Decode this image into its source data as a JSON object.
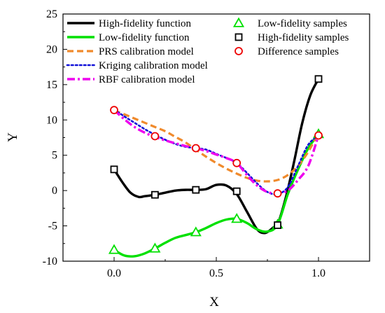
{
  "chart_data": {
    "type": "line",
    "xlabel": "X",
    "ylabel": "Y",
    "xlim": [
      -0.25,
      1.25
    ],
    "ylim": [
      -10,
      25
    ],
    "x_ticks": [
      0.0,
      0.5,
      1.0
    ],
    "x_tick_labels": [
      "0.0",
      "0.5",
      "1.0"
    ],
    "y_ticks": [
      -10,
      -5,
      0,
      5,
      10,
      15,
      20,
      25
    ],
    "y_tick_labels": [
      "-10",
      "-5",
      "0",
      "5",
      "10",
      "15",
      "20",
      "25"
    ],
    "grid": false,
    "legend_position": "top",
    "series": [
      {
        "name": "High-fidelity function",
        "kind": "line",
        "color": "#000000",
        "dash": "solid",
        "x": [
          0.0,
          0.04,
          0.08,
          0.12,
          0.15,
          0.2,
          0.25,
          0.3,
          0.35,
          0.4,
          0.45,
          0.5,
          0.55,
          0.6,
          0.65,
          0.7,
          0.74,
          0.78,
          0.8,
          0.84,
          0.88,
          0.92,
          0.96,
          1.0
        ],
        "y": [
          3.0,
          1.2,
          -0.3,
          -0.9,
          -0.8,
          -0.6,
          -0.3,
          0.0,
          0.1,
          0.1,
          0.2,
          0.8,
          0.7,
          -0.5,
          -3.0,
          -5.5,
          -6.0,
          -5.2,
          -4.8,
          -1.0,
          4.0,
          9.5,
          13.5,
          15.8
        ]
      },
      {
        "name": "Low-fidelity function",
        "kind": "line",
        "color": "#00e000",
        "dash": "solid",
        "x": [
          0.0,
          0.05,
          0.1,
          0.15,
          0.2,
          0.25,
          0.3,
          0.35,
          0.4,
          0.45,
          0.5,
          0.55,
          0.6,
          0.65,
          0.7,
          0.75,
          0.8,
          0.85,
          0.9,
          0.95,
          1.0
        ],
        "y": [
          -8.4,
          -9.2,
          -9.3,
          -8.9,
          -8.2,
          -7.4,
          -6.7,
          -6.3,
          -5.9,
          -5.3,
          -4.6,
          -4.1,
          -4.0,
          -4.6,
          -5.5,
          -5.8,
          -4.8,
          -0.5,
          3.0,
          6.0,
          8.0
        ]
      },
      {
        "name": "PRS calibration model",
        "kind": "line",
        "color": "#f08a2c",
        "dash": "dash",
        "x": [
          0.0,
          0.05,
          0.1,
          0.15,
          0.2,
          0.25,
          0.3,
          0.35,
          0.4,
          0.45,
          0.5,
          0.55,
          0.6,
          0.65,
          0.7,
          0.75,
          0.8,
          0.85,
          0.9,
          0.95,
          1.0
        ],
        "y": [
          11.3,
          10.8,
          10.2,
          9.6,
          9.0,
          8.4,
          7.6,
          6.8,
          5.8,
          4.8,
          3.9,
          3.1,
          2.4,
          1.8,
          1.4,
          1.3,
          1.5,
          2.2,
          3.5,
          5.5,
          8.2
        ]
      },
      {
        "name": "Kriging calibration model",
        "kind": "line",
        "color": "#1010d8",
        "dash": "dot",
        "x": [
          0.0,
          0.05,
          0.1,
          0.15,
          0.2,
          0.25,
          0.3,
          0.35,
          0.4,
          0.45,
          0.5,
          0.55,
          0.6,
          0.65,
          0.7,
          0.75,
          0.8,
          0.85,
          0.9,
          0.95,
          1.0
        ],
        "y": [
          11.5,
          10.5,
          9.6,
          8.7,
          7.9,
          7.2,
          6.6,
          6.2,
          6.0,
          5.8,
          5.2,
          4.6,
          3.9,
          2.5,
          1.0,
          -0.2,
          -0.5,
          0.5,
          3.5,
          6.5,
          7.8
        ]
      },
      {
        "name": "RBF calibration model",
        "kind": "line",
        "color": "#ee00ee",
        "dash": "dashdot",
        "x": [
          0.0,
          0.05,
          0.1,
          0.15,
          0.2,
          0.25,
          0.3,
          0.35,
          0.4,
          0.45,
          0.5,
          0.55,
          0.6,
          0.65,
          0.7,
          0.75,
          0.8,
          0.85,
          0.9,
          0.95,
          1.0
        ],
        "y": [
          11.4,
          10.1,
          9.0,
          8.2,
          7.6,
          7.1,
          6.7,
          6.3,
          6.0,
          5.6,
          5.1,
          4.6,
          3.9,
          2.2,
          0.7,
          -0.2,
          -0.4,
          0.0,
          1.5,
          3.5,
          7.8
        ]
      },
      {
        "name": "Low-fidelity samples",
        "kind": "marker",
        "marker": "triangle",
        "color": "#00e000",
        "x": [
          0.0,
          0.2,
          0.4,
          0.6,
          0.8,
          1.0
        ],
        "y": [
          -8.4,
          -8.2,
          -5.9,
          -4.0,
          -4.8,
          8.0
        ]
      },
      {
        "name": "High-fidelity samples",
        "kind": "marker",
        "marker": "square",
        "color": "#000000",
        "x": [
          0.0,
          0.2,
          0.4,
          0.6,
          0.8,
          1.0
        ],
        "y": [
          3.0,
          -0.6,
          0.1,
          -0.1,
          -4.9,
          15.8
        ]
      },
      {
        "name": "Difference samples",
        "kind": "marker",
        "marker": "circle",
        "color": "#ee0000",
        "x": [
          0.0,
          0.2,
          0.4,
          0.6,
          0.8,
          1.0
        ],
        "y": [
          11.4,
          7.7,
          6.0,
          3.9,
          -0.4,
          7.8
        ]
      }
    ]
  }
}
